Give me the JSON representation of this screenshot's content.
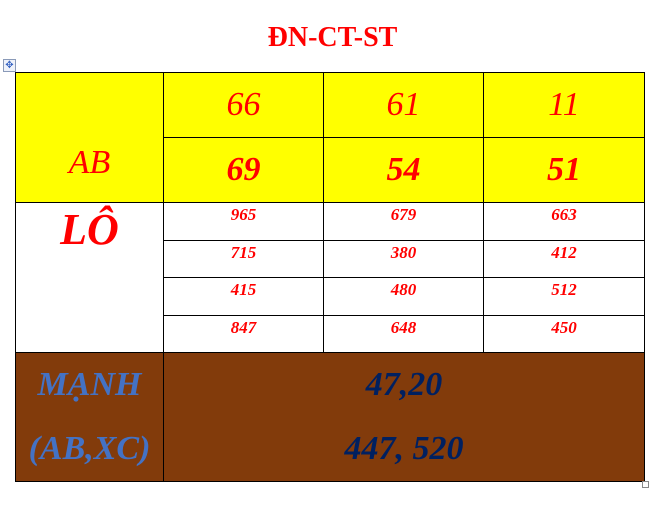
{
  "title": "ĐN-CT-ST",
  "ab": {
    "label": "AB",
    "rows": [
      [
        "66",
        "61",
        "11"
      ],
      [
        "69",
        "54",
        "51"
      ]
    ]
  },
  "lo": {
    "label": "LÔ",
    "rows": [
      [
        "965",
        "679",
        "663"
      ],
      [
        "715",
        "380",
        "412"
      ],
      [
        "415",
        "480",
        "512"
      ],
      [
        "847",
        "648",
        "450"
      ]
    ]
  },
  "manh": {
    "label_line1": "MẠNH",
    "label_line2": "(AB,XC)",
    "value_line1": "47,20",
    "value_line2": "447, 520"
  },
  "colors": {
    "ab_bg": "#ffff00",
    "red_text": "#ff0000",
    "manh_bg": "#823b0b",
    "manh_label": "#4472c4",
    "manh_value": "#002060"
  },
  "icons": {
    "table_handle": "move-icon"
  }
}
